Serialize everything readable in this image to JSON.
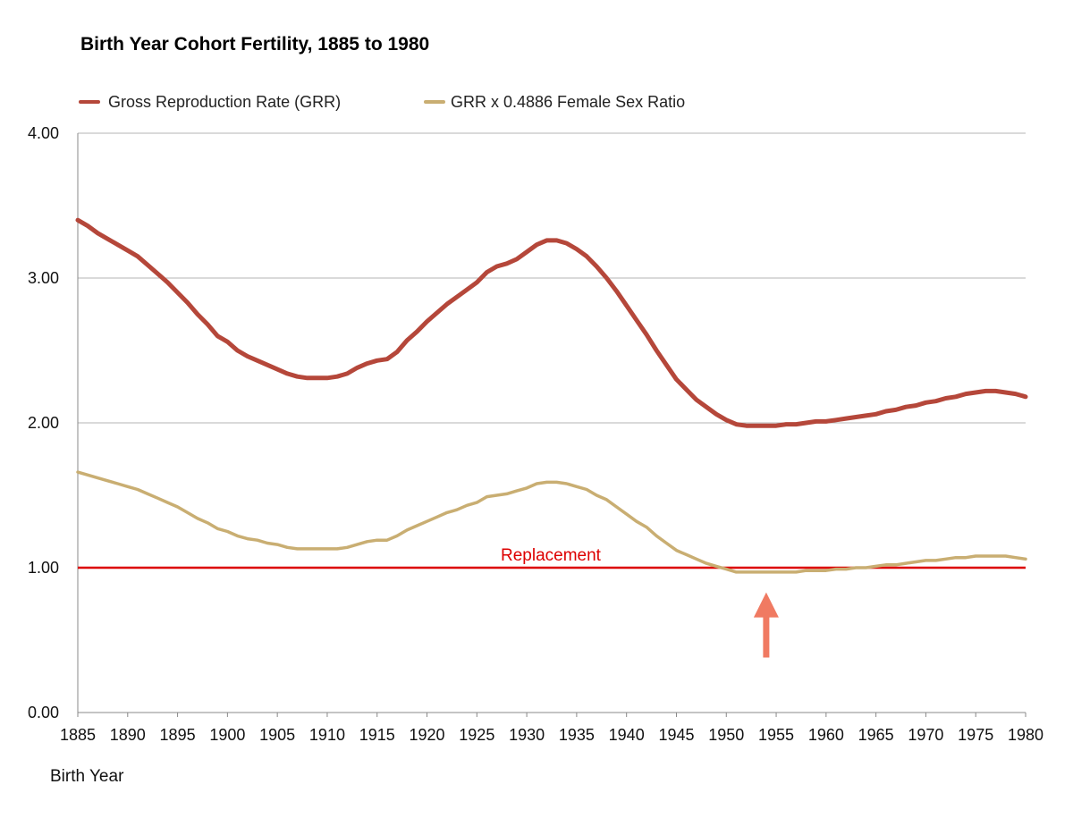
{
  "colors": {
    "grr": "#b5473a",
    "female": "#c9ae72",
    "replacement": "#dd0000",
    "arrow": "#f07a62",
    "grid": "#b4b4b4",
    "axis": "#888888"
  },
  "chart_data": {
    "type": "line",
    "title": "Birth Year Cohort Fertility, 1885 to 1980",
    "xlabel": "Birth Year",
    "ylabel": "",
    "xlim": [
      1885,
      1980
    ],
    "ylim": [
      0,
      4
    ],
    "grid": true,
    "legend_position": "top-left",
    "x_ticks": [
      "1885",
      "1890",
      "1895",
      "1900",
      "1905",
      "1910",
      "1915",
      "1920",
      "1925",
      "1930",
      "1935",
      "1940",
      "1945",
      "1950",
      "1955",
      "1960",
      "1965",
      "1970",
      "1975",
      "1980"
    ],
    "y_ticks": [
      "0.00",
      "1.00",
      "2.00",
      "3.00",
      "4.00"
    ],
    "series": [
      {
        "name": "Gross Reproduction Rate (GRR)",
        "color_key": "grr",
        "x": [
          1885,
          1886,
          1887,
          1888,
          1889,
          1890,
          1891,
          1892,
          1893,
          1894,
          1895,
          1896,
          1897,
          1898,
          1899,
          1900,
          1901,
          1902,
          1903,
          1904,
          1905,
          1906,
          1907,
          1908,
          1909,
          1910,
          1911,
          1912,
          1913,
          1914,
          1915,
          1916,
          1917,
          1918,
          1919,
          1920,
          1921,
          1922,
          1923,
          1924,
          1925,
          1926,
          1927,
          1928,
          1929,
          1930,
          1931,
          1932,
          1933,
          1934,
          1935,
          1936,
          1937,
          1938,
          1939,
          1940,
          1941,
          1942,
          1943,
          1944,
          1945,
          1946,
          1947,
          1948,
          1949,
          1950,
          1951,
          1952,
          1953,
          1954,
          1955,
          1956,
          1957,
          1958,
          1959,
          1960,
          1961,
          1962,
          1963,
          1964,
          1965,
          1966,
          1967,
          1968,
          1969,
          1970,
          1971,
          1972,
          1973,
          1974,
          1975,
          1976,
          1977,
          1978,
          1979,
          1980
        ],
        "values": [
          3.4,
          3.36,
          3.31,
          3.27,
          3.23,
          3.19,
          3.15,
          3.09,
          3.03,
          2.97,
          2.9,
          2.83,
          2.75,
          2.68,
          2.6,
          2.56,
          2.5,
          2.46,
          2.43,
          2.4,
          2.37,
          2.34,
          2.32,
          2.31,
          2.31,
          2.31,
          2.32,
          2.34,
          2.38,
          2.41,
          2.43,
          2.44,
          2.49,
          2.57,
          2.63,
          2.7,
          2.76,
          2.82,
          2.87,
          2.92,
          2.97,
          3.04,
          3.08,
          3.1,
          3.13,
          3.18,
          3.23,
          3.26,
          3.26,
          3.24,
          3.2,
          3.15,
          3.08,
          3.0,
          2.91,
          2.81,
          2.71,
          2.61,
          2.5,
          2.4,
          2.3,
          2.23,
          2.16,
          2.11,
          2.06,
          2.02,
          1.99,
          1.98,
          1.98,
          1.98,
          1.98,
          1.99,
          1.99,
          2.0,
          2.01,
          2.01,
          2.02,
          2.03,
          2.04,
          2.05,
          2.06,
          2.08,
          2.09,
          2.11,
          2.12,
          2.14,
          2.15,
          2.17,
          2.18,
          2.2,
          2.21,
          2.22,
          2.22,
          2.21,
          2.2,
          2.18
        ]
      },
      {
        "name": "GRR x 0.4886 Female Sex Ratio",
        "color_key": "female",
        "x": [
          1885,
          1886,
          1887,
          1888,
          1889,
          1890,
          1891,
          1892,
          1893,
          1894,
          1895,
          1896,
          1897,
          1898,
          1899,
          1900,
          1901,
          1902,
          1903,
          1904,
          1905,
          1906,
          1907,
          1908,
          1909,
          1910,
          1911,
          1912,
          1913,
          1914,
          1915,
          1916,
          1917,
          1918,
          1919,
          1920,
          1921,
          1922,
          1923,
          1924,
          1925,
          1926,
          1927,
          1928,
          1929,
          1930,
          1931,
          1932,
          1933,
          1934,
          1935,
          1936,
          1937,
          1938,
          1939,
          1940,
          1941,
          1942,
          1943,
          1944,
          1945,
          1946,
          1947,
          1948,
          1949,
          1950,
          1951,
          1952,
          1953,
          1954,
          1955,
          1956,
          1957,
          1958,
          1959,
          1960,
          1961,
          1962,
          1963,
          1964,
          1965,
          1966,
          1967,
          1968,
          1969,
          1970,
          1971,
          1972,
          1973,
          1974,
          1975,
          1976,
          1977,
          1978,
          1979,
          1980
        ],
        "values": [
          1.66,
          1.64,
          1.62,
          1.6,
          1.58,
          1.56,
          1.54,
          1.51,
          1.48,
          1.45,
          1.42,
          1.38,
          1.34,
          1.31,
          1.27,
          1.25,
          1.22,
          1.2,
          1.19,
          1.17,
          1.16,
          1.14,
          1.13,
          1.13,
          1.13,
          1.13,
          1.13,
          1.14,
          1.16,
          1.18,
          1.19,
          1.19,
          1.22,
          1.26,
          1.29,
          1.32,
          1.35,
          1.38,
          1.4,
          1.43,
          1.45,
          1.49,
          1.5,
          1.51,
          1.53,
          1.55,
          1.58,
          1.59,
          1.59,
          1.58,
          1.56,
          1.54,
          1.5,
          1.47,
          1.42,
          1.37,
          1.32,
          1.28,
          1.22,
          1.17,
          1.12,
          1.09,
          1.06,
          1.03,
          1.01,
          0.99,
          0.97,
          0.97,
          0.97,
          0.97,
          0.97,
          0.97,
          0.97,
          0.98,
          0.98,
          0.98,
          0.99,
          0.99,
          1.0,
          1.0,
          1.01,
          1.02,
          1.02,
          1.03,
          1.04,
          1.05,
          1.05,
          1.06,
          1.07,
          1.07,
          1.08,
          1.08,
          1.08,
          1.08,
          1.07,
          1.06
        ]
      }
    ],
    "reference_line": {
      "label": "Replacement",
      "value": 1.0,
      "color_key": "replacement"
    },
    "arrow_annotation": {
      "x": 1954,
      "y_from": 0.38,
      "y_to": 0.99,
      "color_key": "arrow"
    }
  }
}
